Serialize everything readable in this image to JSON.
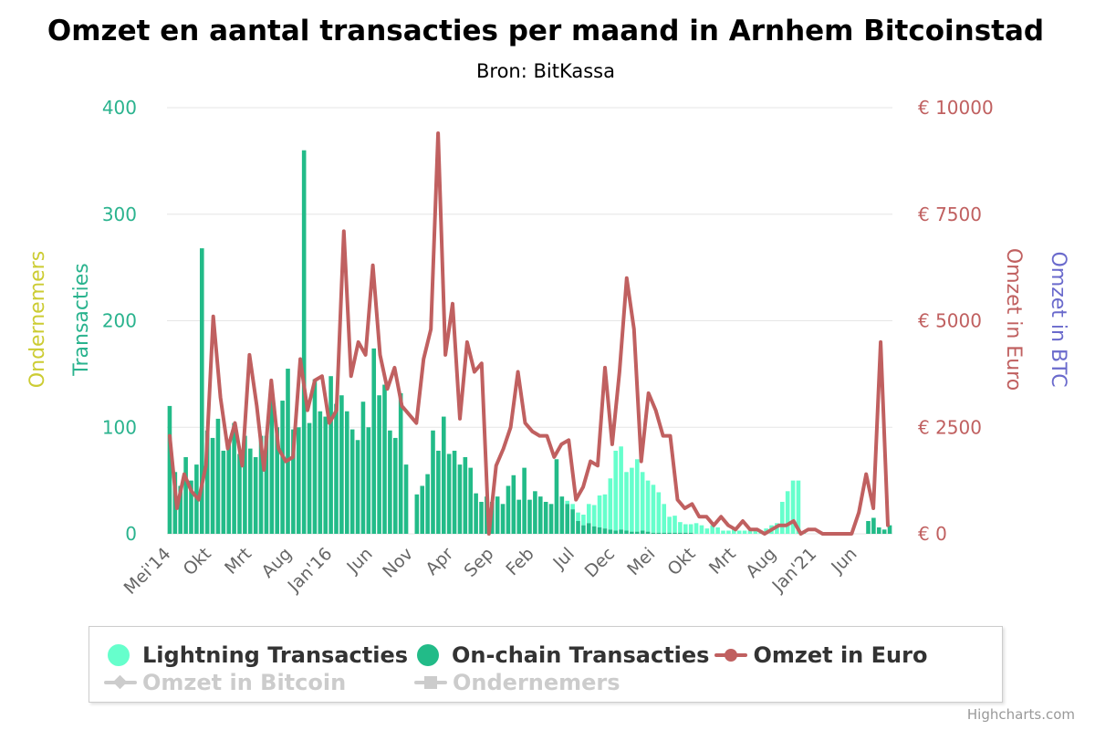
{
  "chart_data": {
    "type": "bar+line",
    "title": "Omzet en aantal transacties per maand in Arnhem Bitcoinstad",
    "subtitle": "Bron: BitKassa",
    "x_tick_labels": [
      "Mei'14",
      "Okt",
      "Mrt",
      "Aug",
      "Jan'16",
      "Jun",
      "Nov",
      "Apr",
      "Sep",
      "Feb",
      "Jul",
      "Dec",
      "Mei",
      "Okt",
      "Mrt",
      "Aug",
      "Jan'21",
      "Jun"
    ],
    "y_axes": [
      {
        "title": "Transacties",
        "ticks": [
          "0",
          "100",
          "200",
          "300",
          "400"
        ],
        "range": [
          0,
          400
        ]
      },
      {
        "title": "Ondernemers",
        "ticks": []
      },
      {
        "title": "Omzet in Euro",
        "ticks": [
          "€ 0",
          "€ 2500",
          "€ 5000",
          "€ 7500",
          "€ 10000"
        ],
        "range": [
          0,
          10000
        ]
      },
      {
        "title": "Omzet in BTC",
        "ticks": []
      }
    ],
    "series": [
      {
        "name": "Lightning Transacties",
        "type": "column",
        "stacked": true,
        "color": "#66ffcc",
        "values": [
          0,
          0,
          0,
          0,
          0,
          0,
          0,
          0,
          0,
          0,
          0,
          0,
          0,
          0,
          0,
          0,
          0,
          0,
          0,
          0,
          0,
          0,
          0,
          0,
          0,
          0,
          0,
          0,
          0,
          0,
          0,
          0,
          0,
          0,
          0,
          0,
          0,
          0,
          0,
          0,
          0,
          0,
          0,
          0,
          0,
          0,
          0,
          0,
          0,
          0,
          0,
          0,
          0,
          0,
          0,
          0,
          0,
          0,
          0,
          0,
          0,
          0,
          0,
          0,
          0,
          0,
          0,
          0,
          0,
          0,
          0,
          0,
          0,
          0,
          3,
          5,
          8,
          10,
          18,
          20,
          30,
          32,
          48,
          75,
          78,
          55,
          60,
          68,
          55,
          48,
          45,
          38,
          27,
          15,
          16,
          10,
          8,
          8,
          10,
          8,
          5,
          8,
          6,
          3,
          3,
          4,
          3,
          3,
          3,
          4,
          2,
          5,
          8,
          10,
          30,
          40,
          50,
          50,
          2
        ]
      },
      {
        "name": "On-chain Transacties",
        "type": "column",
        "stacked": true,
        "color": "#22bb88",
        "values": [
          120,
          58,
          45,
          72,
          50,
          65,
          268,
          97,
          90,
          108,
          78,
          84,
          104,
          75,
          92,
          80,
          72,
          92,
          92,
          135,
          100,
          125,
          155,
          98,
          100,
          360,
          104,
          145,
          115,
          110,
          148,
          122,
          130,
          115,
          98,
          88,
          124,
          100,
          174,
          130,
          140,
          97,
          90,
          132,
          65,
          0,
          37,
          45,
          56,
          97,
          78,
          110,
          75,
          78,
          65,
          72,
          62,
          38,
          30,
          35,
          30,
          35,
          28,
          45,
          55,
          32,
          62,
          32,
          40,
          35,
          30,
          28,
          70,
          35,
          28,
          23,
          12,
          8,
          10,
          7,
          6,
          5,
          4,
          3,
          4,
          3,
          2,
          2,
          3,
          2,
          1,
          1,
          1,
          1,
          1,
          1,
          1,
          1,
          0,
          0,
          0,
          0,
          0,
          0,
          0,
          0,
          0,
          0,
          0,
          0,
          0,
          0,
          0,
          0,
          0,
          0,
          0,
          0,
          0,
          0,
          0,
          0,
          0,
          0,
          0,
          0,
          0,
          0,
          0,
          0,
          12,
          15,
          6,
          4,
          8
        ]
      },
      {
        "name": "Omzet in Euro",
        "type": "line",
        "color": "#c06060",
        "values": [
          2300,
          600,
          1400,
          1000,
          800,
          1600,
          5100,
          3200,
          2000,
          2600,
          1600,
          4200,
          3000,
          1500,
          3600,
          2000,
          1700,
          1800,
          4100,
          2900,
          3600,
          3700,
          2600,
          2900,
          7100,
          3700,
          4500,
          4200,
          6300,
          4200,
          3400,
          3900,
          3000,
          2800,
          2600,
          4100,
          4800,
          9400,
          4200,
          5400,
          2700,
          4500,
          3800,
          4000,
          0,
          1600,
          2000,
          2500,
          3800,
          2600,
          2400,
          2300,
          2300,
          1800,
          2100,
          2200,
          800,
          1100,
          1700,
          1600,
          3900,
          2100,
          3800,
          6000,
          4800,
          1700,
          3300,
          2900,
          2300,
          2300,
          800,
          600,
          700,
          400,
          400,
          200,
          400,
          200,
          100,
          300,
          100,
          100,
          0,
          100,
          200,
          200,
          300,
          0,
          100,
          100,
          0,
          0,
          0,
          0,
          0,
          500,
          1400,
          600,
          4500,
          200
        ]
      },
      {
        "name": "Omzet in Bitcoin",
        "type": "line",
        "hidden": true,
        "color": "#cccccc",
        "values": []
      },
      {
        "name": "Ondernemers",
        "type": "line",
        "hidden": true,
        "color": "#cccccc",
        "values": []
      }
    ],
    "colors": {
      "left_axis": "#2ab38e",
      "ondernemers_axis": "#cccc33",
      "right_axis": "#c06060",
      "btc_axis": "#6a6acc",
      "grid": "#e6e6e6"
    },
    "grid": true,
    "legend_position": "bottom"
  },
  "legend": {
    "items": [
      {
        "label": "Lightning Transacties",
        "icon": "circle",
        "color": "#66ffcc"
      },
      {
        "label": "On-chain Transacties",
        "icon": "circle",
        "color": "#22bb88"
      },
      {
        "label": "Omzet in Euro",
        "icon": "line-circle",
        "color": "#c06060"
      },
      {
        "label": "Omzet in Bitcoin",
        "icon": "line-diamond",
        "color": "#cccccc"
      },
      {
        "label": "Ondernemers",
        "icon": "line-square",
        "color": "#cccccc"
      }
    ]
  },
  "credits": "Highcharts.com"
}
